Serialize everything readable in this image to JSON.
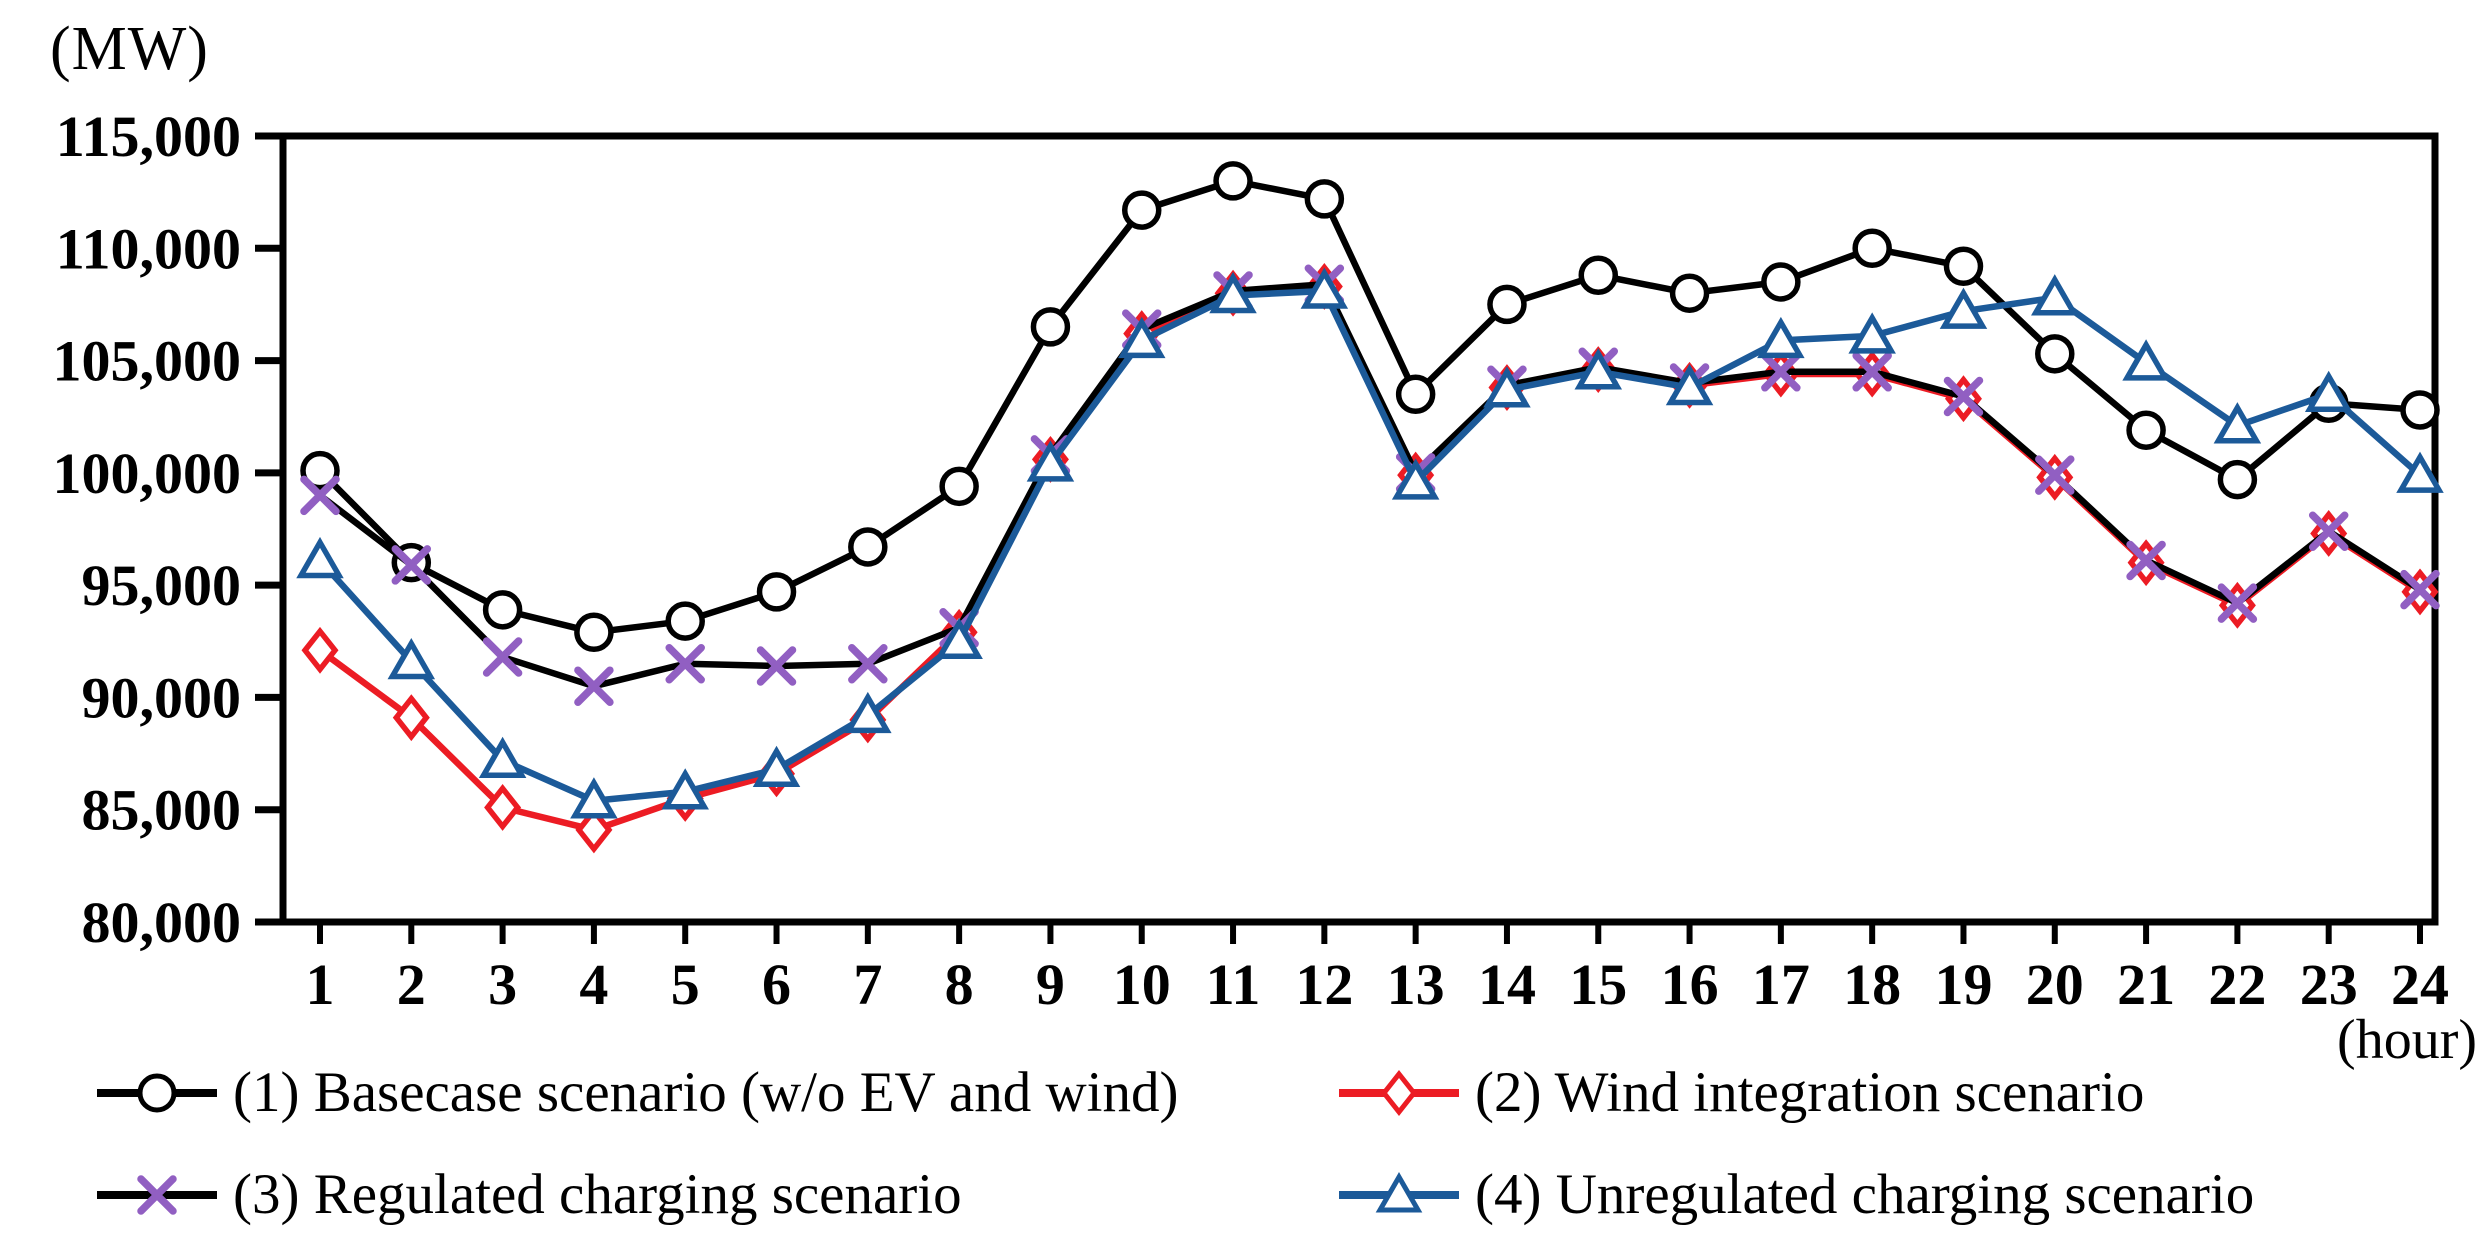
{
  "page": {
    "background": "#ffffff"
  },
  "chart_data": {
    "type": "line",
    "title": "",
    "y_unit_label": "(MW)",
    "x_unit_label": "(hour)",
    "xlabel": "hour",
    "ylabel": "MW",
    "ylim": [
      80000,
      115000
    ],
    "y_ticks": [
      80000,
      85000,
      90000,
      95000,
      100000,
      105000,
      110000,
      115000
    ],
    "y_tick_labels": [
      "80,000",
      "85,000",
      "90,000",
      "95,000",
      "100,000",
      "105,000",
      "110,000",
      "115,000"
    ],
    "x": [
      1,
      2,
      3,
      4,
      5,
      6,
      7,
      8,
      9,
      10,
      11,
      12,
      13,
      14,
      15,
      16,
      17,
      18,
      19,
      20,
      21,
      22,
      23,
      24
    ],
    "grid": false,
    "legend_position": "bottom",
    "frame_color": "#000000",
    "series": [
      {
        "key": "basecase",
        "name": "(1) Basecase scenario (w/o EV and wind)",
        "marker": "circle",
        "marker_color": "#000000",
        "line_color": "#000000",
        "values": [
          100100,
          96000,
          93900,
          92900,
          93400,
          94700,
          96700,
          99400,
          106500,
          111700,
          113000,
          112200,
          103500,
          107500,
          108800,
          108000,
          108500,
          110000,
          109200,
          105300,
          101900,
          99700,
          103100,
          102800
        ]
      },
      {
        "key": "wind",
        "name": "(2) Wind integration scenario",
        "marker": "diamond",
        "marker_color": "#ec1c24",
        "line_color": "#ec1c24",
        "values": [
          92100,
          89100,
          85100,
          84100,
          85500,
          86600,
          89000,
          92900,
          100600,
          106200,
          108000,
          108300,
          99900,
          103800,
          104600,
          103900,
          104400,
          104400,
          103300,
          99800,
          96000,
          94100,
          97300,
          94700
        ]
      },
      {
        "key": "regulated",
        "name": "(3) Regulated charging scenario",
        "marker": "x",
        "marker_color": "#915fc2",
        "line_color": "#000000",
        "values": [
          99000,
          95900,
          91800,
          90500,
          91500,
          91400,
          91500,
          93100,
          100800,
          106400,
          108100,
          108400,
          100000,
          103900,
          104700,
          104000,
          104500,
          104500,
          103400,
          99900,
          96100,
          94200,
          97400,
          94800
        ]
      },
      {
        "key": "unregulated",
        "name": "(4) Unregulated charging scenario",
        "marker": "triangle",
        "marker_color": "#1c5a99",
        "line_color": "#1c5a99",
        "values": [
          96100,
          91600,
          87200,
          85400,
          85800,
          86800,
          89200,
          92500,
          100400,
          105900,
          107900,
          108100,
          99600,
          103700,
          104500,
          103800,
          105900,
          106100,
          107200,
          107800,
          104900,
          102100,
          103500,
          99900
        ]
      }
    ]
  }
}
